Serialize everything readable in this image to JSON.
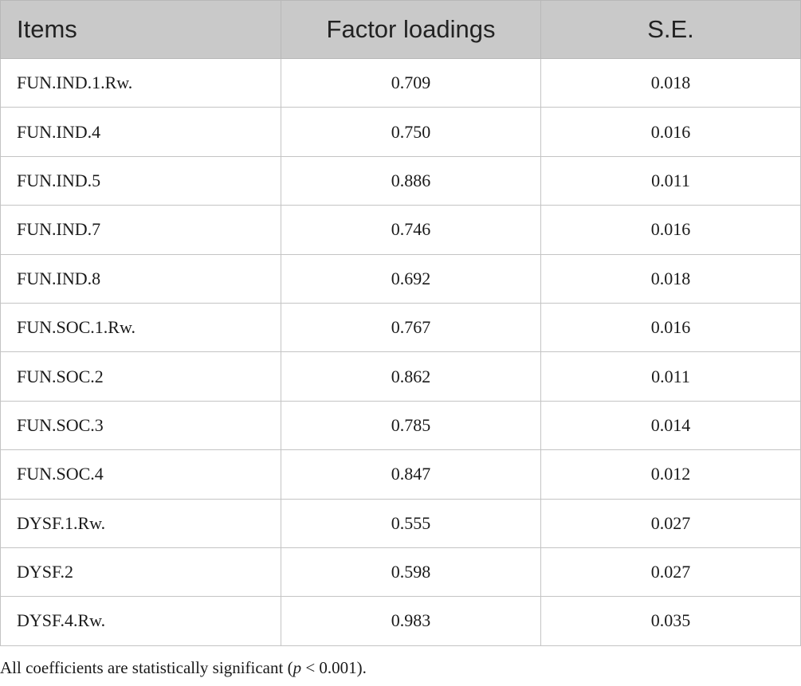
{
  "table": {
    "header": [
      "Items",
      "Factor loadings",
      "S.E."
    ],
    "rows": [
      [
        "FUN.IND.1.Rw.",
        "0.709",
        "0.018"
      ],
      [
        "FUN.IND.4",
        "0.750",
        "0.016"
      ],
      [
        "FUN.IND.5",
        "0.886",
        "0.011"
      ],
      [
        "FUN.IND.7",
        "0.746",
        "0.016"
      ],
      [
        "FUN.IND.8",
        "0.692",
        "0.018"
      ],
      [
        "FUN.SOC.1.Rw.",
        "0.767",
        "0.016"
      ],
      [
        "FUN.SOC.2",
        "0.862",
        "0.011"
      ],
      [
        "FUN.SOC.3",
        "0.785",
        "0.014"
      ],
      [
        "FUN.SOC.4",
        "0.847",
        "0.012"
      ],
      [
        "DYSF.1.Rw.",
        "0.555",
        "0.027"
      ],
      [
        "DYSF.2",
        "0.598",
        "0.027"
      ],
      [
        "DYSF.4.Rw.",
        "0.983",
        "0.035"
      ]
    ]
  },
  "footnote": [
    "All coefficients are statistically significant (",
    "p",
    " < 0.001)."
  ]
}
